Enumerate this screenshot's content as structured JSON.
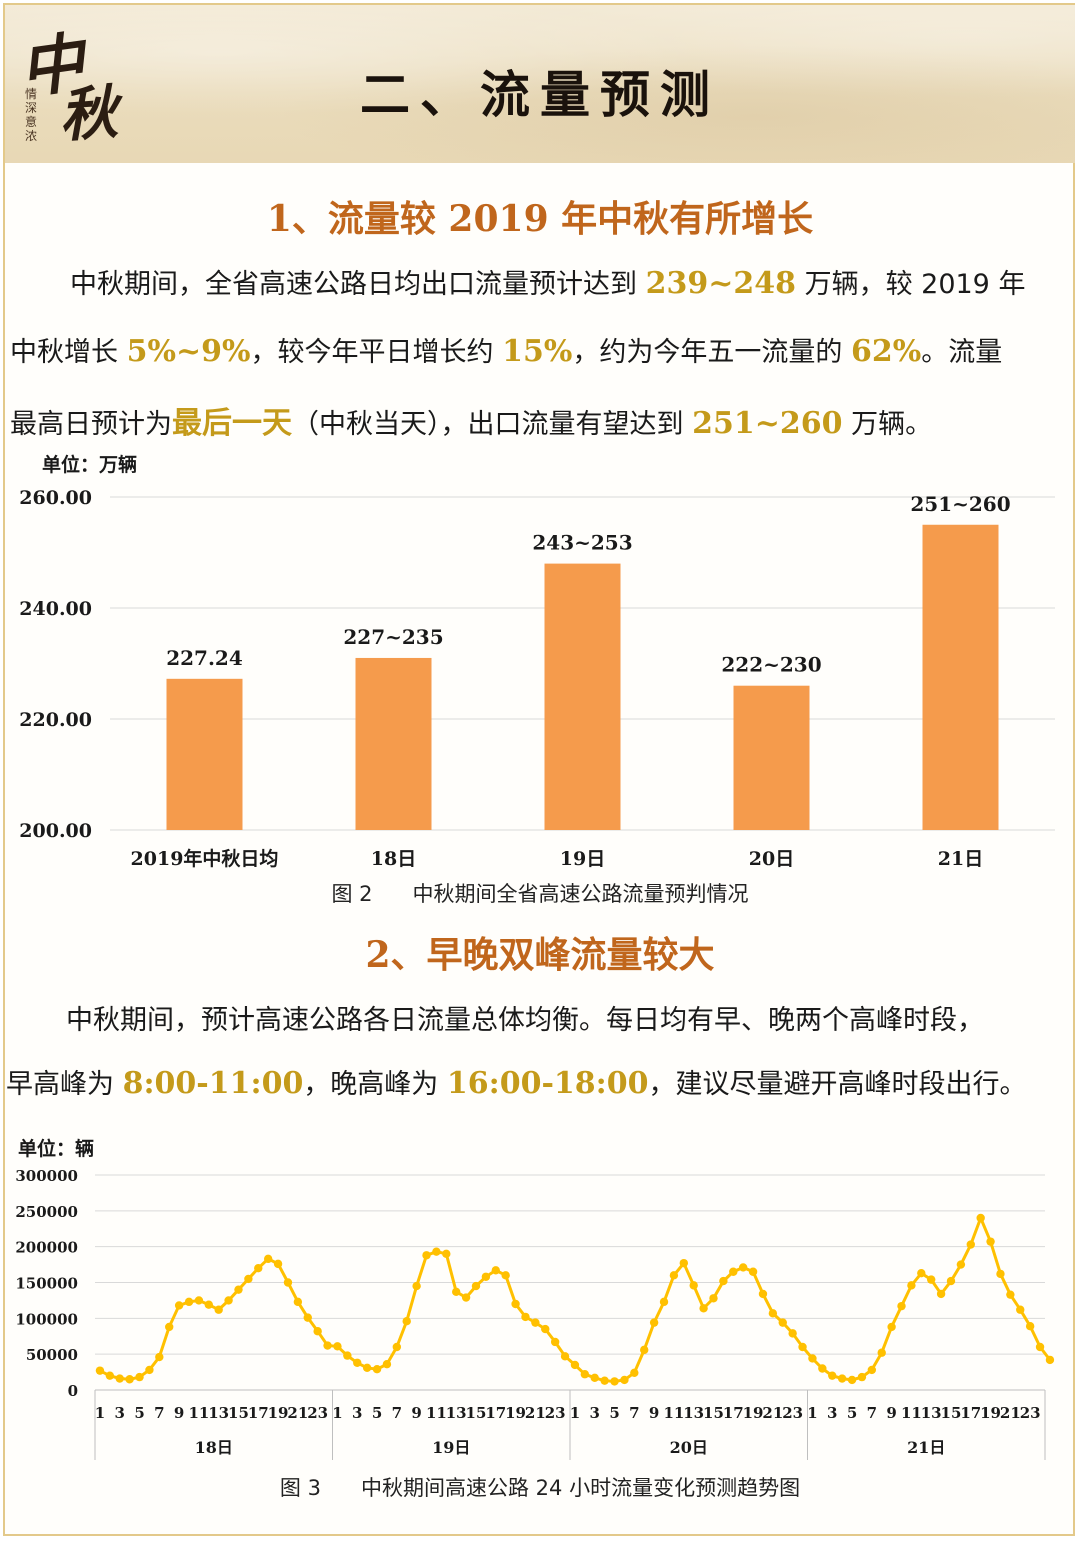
{
  "header": {
    "logo_big_1": "中",
    "logo_big_2": "秋",
    "logo_sub": "情深意浓",
    "title": "二、流量预测"
  },
  "section1": {
    "heading": "1、流量较 2019 年中秋有所增长",
    "line1": [
      "中秋期间，全省高速公路日均出口流量预计达到 ",
      "239~248",
      " 万辆，较 2019 年"
    ],
    "line2": [
      "中秋增长 ",
      "5%~9%",
      "，较今年平日增长约 ",
      "15%",
      "，约为今年五一流量的 ",
      "62%",
      "。流量"
    ],
    "line3": [
      "最高日预计为",
      "最后一天",
      "（中秋当天），出口流量有望达到 ",
      "251~260",
      " 万辆。"
    ],
    "chart_unit": "单位：万辆",
    "caption": "图 2      中秋期间全省高速公路流量预判情况"
  },
  "section2": {
    "heading": "2、早晚双峰流量较大",
    "line1": "中秋期间，预计高速公路各日流量总体均衡。每日均有早、晚两个高峰时段，",
    "line2": [
      "早高峰为 ",
      "8:00-11:00",
      "，晚高峰为 ",
      "16:00-18:00",
      "，建议尽量避开高峰时段出行。"
    ],
    "chart_unit": "单位：辆",
    "caption": "图 3      中秋期间高速公路 24 小时流量变化预测趋势图"
  },
  "colors": {
    "accent_heading": "#c0661c",
    "highlight": "#c49a1a",
    "bar": "#f59b4c",
    "line": "#ffc000"
  },
  "chart_data": [
    {
      "type": "bar",
      "categories": [
        "2019年中秋日均",
        "18日",
        "19日",
        "20日",
        "21日"
      ],
      "values": [
        227.24,
        231,
        248,
        226,
        255
      ],
      "data_labels": [
        "227.24",
        "227~235",
        "243~253",
        "222~230",
        "251~260"
      ],
      "ylim": [
        200,
        260
      ],
      "yticks": [
        "200.00",
        "220.00",
        "240.00",
        "260.00"
      ],
      "grid": true
    },
    {
      "type": "line",
      "groups": [
        "18日",
        "19日",
        "20日",
        "21日"
      ],
      "hour_tick_labels": [
        "1",
        "3",
        "5",
        "7",
        "9",
        "11",
        "13",
        "15",
        "17",
        "19",
        "21",
        "23"
      ],
      "ylim": [
        0,
        300000
      ],
      "yticks": [
        "0",
        "50000",
        "100000",
        "150000",
        "200000",
        "250000",
        "300000"
      ],
      "grid": true,
      "values": [
        27000,
        20000,
        16000,
        15000,
        18000,
        28000,
        46000,
        88000,
        118000,
        123000,
        125000,
        119000,
        112000,
        125000,
        140000,
        155000,
        170000,
        183000,
        176000,
        150000,
        123000,
        101000,
        82000,
        62000,
        61000,
        48000,
        38000,
        31000,
        29000,
        36000,
        60000,
        96000,
        145000,
        188000,
        193000,
        190000,
        137000,
        129000,
        145000,
        158000,
        167000,
        160000,
        120000,
        102000,
        94000,
        85000,
        67000,
        47000,
        35000,
        22000,
        17000,
        13000,
        12000,
        14000,
        24000,
        56000,
        94000,
        123000,
        160000,
        177000,
        146000,
        114000,
        128000,
        152000,
        165000,
        171000,
        165000,
        134000,
        107000,
        94000,
        79000,
        60000,
        44000,
        30000,
        20000,
        16000,
        14000,
        18000,
        28000,
        52000,
        88000,
        117000,
        146000,
        163000,
        154000,
        134000,
        152000,
        175000,
        203000,
        240000,
        207000,
        162000,
        133000,
        112000,
        89000,
        60000,
        42000
      ]
    }
  ]
}
